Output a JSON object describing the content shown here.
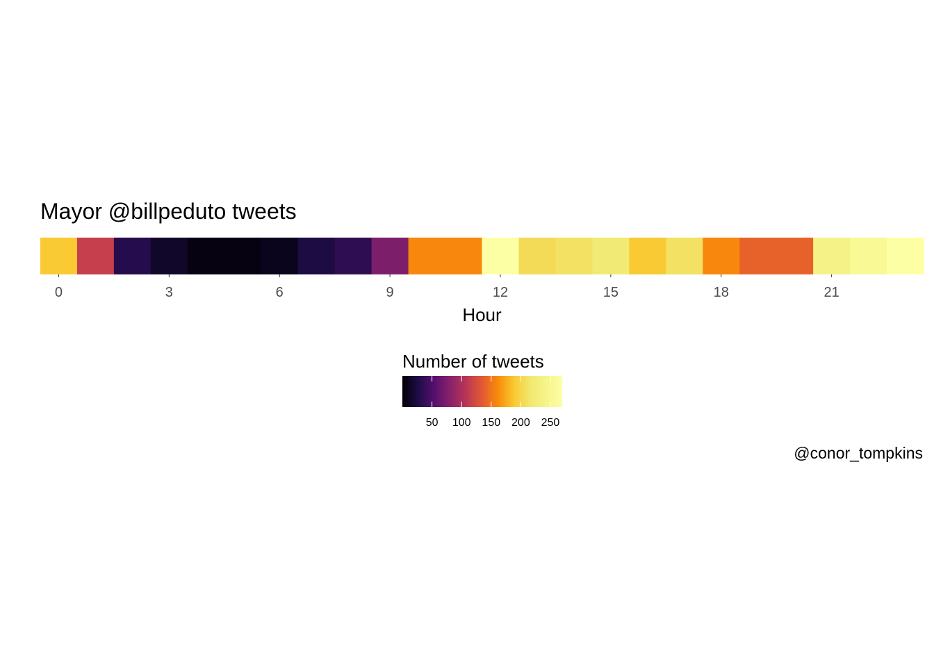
{
  "chart_data": {
    "type": "heatmap",
    "title": "Mayor @billpeduto tweets",
    "xlabel": "Hour",
    "x": [
      0,
      1,
      2,
      3,
      4,
      5,
      6,
      7,
      8,
      9,
      10,
      11,
      12,
      13,
      14,
      15,
      16,
      17,
      18,
      19,
      20,
      21,
      22,
      23
    ],
    "x_ticks": [
      0,
      3,
      6,
      9,
      12,
      15,
      18,
      21
    ],
    "values": [
      190,
      115,
      30,
      15,
      5,
      5,
      10,
      25,
      35,
      75,
      160,
      160,
      270,
      205,
      210,
      220,
      190,
      210,
      160,
      140,
      140,
      240,
      255,
      270
    ],
    "legend": {
      "title": "Number of tweets",
      "ticks": [
        50,
        100,
        150,
        200,
        250
      ],
      "range": [
        0,
        270
      ],
      "colormap": "inferno"
    },
    "caption": "@conor_tompkins"
  }
}
